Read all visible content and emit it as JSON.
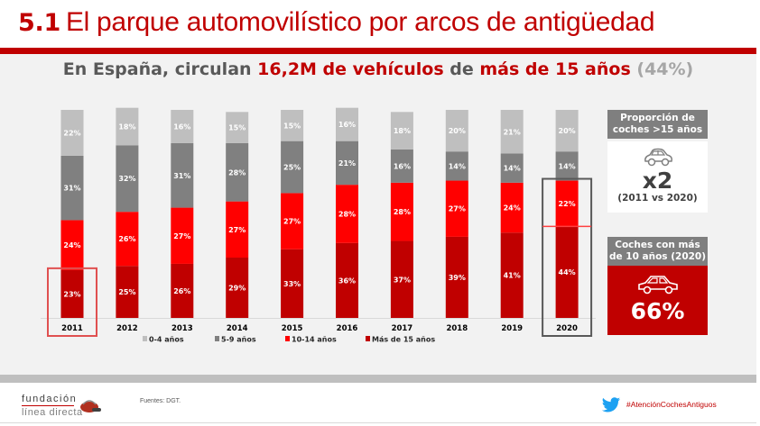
{
  "header": {
    "section_number": "5.1",
    "title": "El parque automovilístico por arcos de antigüedad"
  },
  "subtitle": {
    "part1": "En España, circulan ",
    "part2": "16,2M de vehículos",
    "part3": " de ",
    "part4": "más de 15 años",
    "part5": " (44%)"
  },
  "chart_data": {
    "type": "bar",
    "stacked": true,
    "normalized": true,
    "title": "",
    "xlabel": "",
    "ylabel": "",
    "ylim": [
      0,
      100
    ],
    "grid": false,
    "legend_position": "bottom",
    "categories": [
      "2011",
      "2012",
      "2013",
      "2014",
      "2015",
      "2016",
      "2017",
      "2018",
      "2019",
      "2020"
    ],
    "series": [
      {
        "name": "Más de 15 años",
        "color": "#c00000",
        "values": [
          23,
          25,
          26,
          29,
          33,
          36,
          37,
          39,
          41,
          44
        ]
      },
      {
        "name": "10-14 años",
        "color": "#ff0000",
        "values": [
          24,
          26,
          27,
          27,
          27,
          28,
          28,
          27,
          24,
          22
        ]
      },
      {
        "name": "5-9 años",
        "color": "#808080",
        "values": [
          31,
          32,
          31,
          28,
          25,
          21,
          16,
          14,
          14,
          14
        ]
      },
      {
        "name": "0-4 años",
        "color": "#bfbfbf",
        "values": [
          22,
          18,
          16,
          15,
          15,
          16,
          18,
          20,
          21,
          20
        ]
      }
    ],
    "legend_order": [
      "0-4 años",
      "5-9 años",
      "10-14 años",
      "Más de 15 años"
    ],
    "highlights": [
      {
        "category": "2011",
        "series": [
          "Más de 15 años"
        ],
        "color": "#e05050"
      },
      {
        "category": "2020",
        "series": [
          "Más de 15 años",
          "10-14 años"
        ],
        "color": "#595959"
      }
    ]
  },
  "panels": {
    "proportion": {
      "heading": "Proporción de coches >15 años",
      "icon": "car-outline-icon",
      "value": "x2",
      "caption": "(2011 vs 2020)"
    },
    "over10": {
      "heading": "Coches con más de 10 años (2020)",
      "icon": "car-outline-icon",
      "value": "66%"
    }
  },
  "footer": {
    "logo_line1": "fundación",
    "logo_line2": "línea directa",
    "source": "Fuentes: DGT.",
    "hashtag": "#AtenciónCochesAntiguos",
    "colors": {
      "brand": "#c00000",
      "twitter": "#1da1f2"
    }
  }
}
